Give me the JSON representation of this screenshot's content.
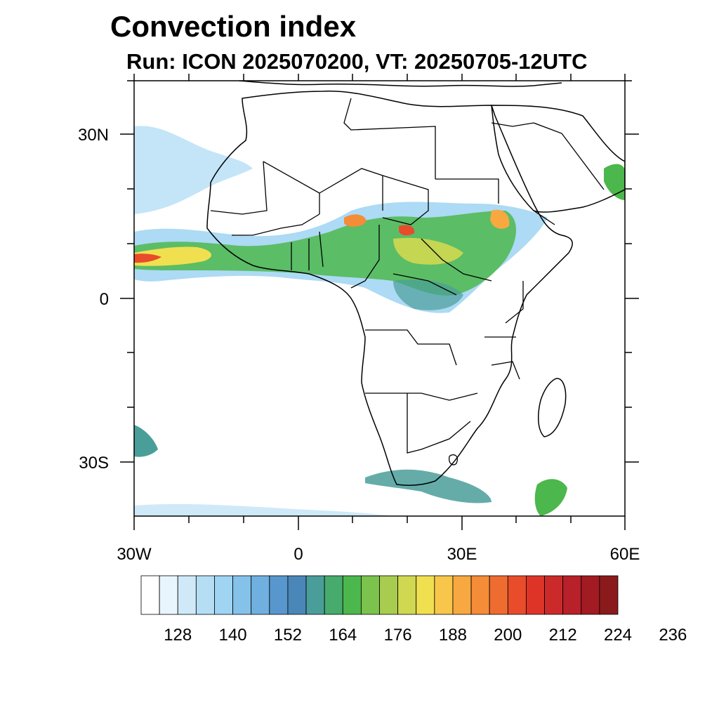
{
  "title": "Convection index",
  "subtitle": "Run: ICON 2025070200,  VT: 20250705-12UTC",
  "map": {
    "lon_range": [
      -30,
      60
    ],
    "lat_range": [
      -40,
      40
    ],
    "lat_labels": [
      "30N",
      "0",
      "30S"
    ],
    "lon_labels": [
      "30W",
      "0",
      "30E",
      "60E"
    ]
  },
  "colorbar": {
    "labels": [
      "128",
      "140",
      "152",
      "164",
      "176",
      "188",
      "200",
      "212",
      "224",
      "236"
    ],
    "colors": [
      "#ffffff",
      "#e8f5fc",
      "#cfe9f8",
      "#b5def5",
      "#9fd4f2",
      "#85c2ea",
      "#6fb0e0",
      "#5797cd",
      "#4a86b8",
      "#4a9e9a",
      "#46ab6c",
      "#4cb74c",
      "#7bc34c",
      "#a8cc50",
      "#cfd850",
      "#f0e050",
      "#f7c64a",
      "#f7a840",
      "#f48c38",
      "#ef6c30",
      "#e84c2a",
      "#de3428",
      "#cc2a2a",
      "#b8202a",
      "#a21a22",
      "#8a1a1c"
    ]
  }
}
